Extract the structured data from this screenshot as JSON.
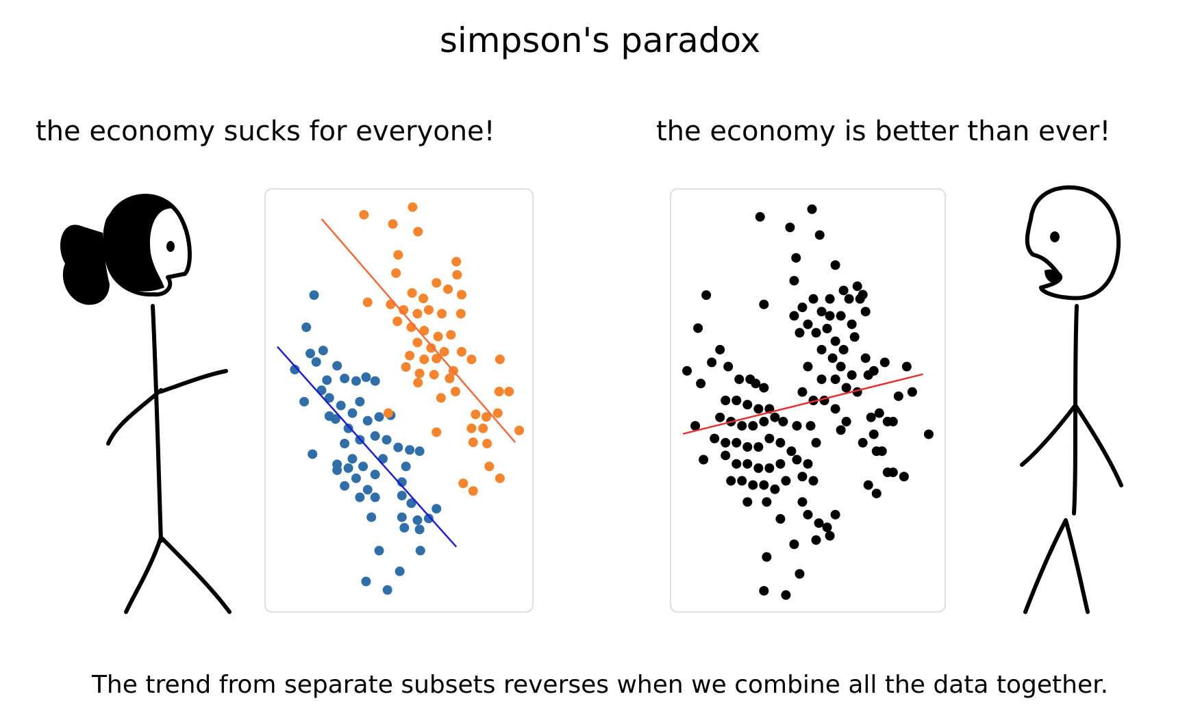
{
  "title": "simpson's paradox",
  "left_caption": "the economy sucks for everyone!",
  "right_caption": "the economy is better than ever!",
  "footer": "The trend from separate subsets reverses when we combine all the data together.",
  "chart_data": [
    {
      "type": "scatter",
      "xlim": [
        0,
        100
      ],
      "ylim": [
        0,
        100
      ],
      "series": [
        {
          "color": "#2f6ea8",
          "x": [
            18.3,
            15.4,
            11.1,
            16.9,
            21.7,
            19.1,
            23.1,
            14.6,
            17.7,
            26.9,
            29.7,
            34,
            37.7,
            41.1,
            24,
            28.3,
            32.6,
            35.4,
            26.3,
            31.1,
            38.3,
            42.6,
            46.9,
            41.1,
            45.4,
            35.4,
            29.7,
            32.6,
            26.9,
            36.6,
            41.1,
            34,
            29.7,
            38.3,
            44,
            49.7,
            54,
            57.7,
            52.6,
            51.1,
            35.4,
            41.1,
            51.1,
            54.6,
            39.7,
            51.1,
            56.9,
            61.1,
            64,
            57.7,
            52,
            42.6,
            58,
            50.3,
            37.7,
            45.7,
            26.9,
            31.1,
            24,
            21.1
          ],
          "values": [
            74.9,
            67.3,
            57.3,
            61.1,
            61.8,
            59.1,
            54.8,
            49.7,
            37.3,
            58.2,
            55.2,
            54.6,
            55.5,
            54.6,
            50.6,
            48.8,
            47,
            49.7,
            45.6,
            43.4,
            45.2,
            46.1,
            46.5,
            41.6,
            40.7,
            40.7,
            39.8,
            36.2,
            34.9,
            34.4,
            32.5,
            31.6,
            29.8,
            28.9,
            36.2,
            38.9,
            38.3,
            38,
            34.4,
            30.7,
            27.1,
            27.1,
            27.5,
            25.7,
            22.4,
            22.4,
            21.7,
            22.1,
            24.4,
            19.5,
            19.9,
            14.5,
            14.5,
            9.6,
            7.2,
            5.2,
            33.5,
            34,
            46.3,
            52.4
          ]
        },
        {
          "color": "#f5842c",
          "x": [
            55.1,
            36.9,
            47.7,
            57.1,
            49.7,
            71.4,
            48.9,
            71.7,
            64,
            68.3,
            73.4,
            54.9,
            59.1,
            38.3,
            46.9,
            51.7,
            56.9,
            61.1,
            66,
            73.1,
            49.4,
            54.6,
            59.4,
            64.6,
            69.4,
            56.9,
            62,
            66.9,
            73.4,
            52.6,
            57.7,
            64,
            70.3,
            77.1,
            87.7,
            57.1,
            65.7,
            71.1,
            91.1,
            87.4,
            78.6,
            82.6,
            86.9,
            77.1,
            81.4,
            64,
            94.9,
            77.7,
            82.9,
            83.7,
            87.7,
            74,
            77.7,
            46,
            54,
            63.1,
            68.9,
            59.4
          ],
          "values": [
            95.7,
            93.9,
            91.7,
            89.9,
            84.4,
            82.8,
            80.1,
            79.7,
            77.8,
            76.3,
            75,
            75.4,
            74.1,
            73.2,
            72.7,
            71.4,
            70.5,
            71.4,
            70.5,
            70.5,
            68.7,
            67.3,
            66.5,
            65.1,
            65.5,
            63.7,
            62.4,
            61.5,
            61.5,
            57.9,
            56.4,
            59.9,
            57,
            59.7,
            59.7,
            54.2,
            50.6,
            52.1,
            52.1,
            52.1,
            46.7,
            46.1,
            47,
            43.4,
            43.4,
            42.5,
            42.9,
            40.1,
            39.8,
            34.4,
            31.6,
            30.4,
            28.6,
            47,
            60.6,
            56.1,
            55.2,
            59.7
          ]
        }
      ],
      "lines": [
        {
          "color": "#1a1ad8",
          "x": [
            4.6,
            71.4
          ],
          "values": [
            62.7,
            15.4
          ]
        },
        {
          "color": "#f26a3a",
          "x": [
            21.1,
            93.4
          ],
          "values": [
            92.9,
            40.1
          ]
        }
      ]
    },
    {
      "type": "scatter",
      "xlim": [
        0,
        100
      ],
      "ylim": [
        0,
        100
      ],
      "series": [
        {
          "color": "#000000",
          "x": [
            32.6,
            43.5,
            51.5,
            54.3,
            45.7,
            45,
            13,
            34,
            10,
            60,
            68,
            63,
            69,
            70,
            71,
            65,
            58,
            48,
            52,
            55,
            58,
            62,
            66,
            50,
            53,
            57,
            60,
            63,
            67,
            71,
            55,
            59,
            62,
            66,
            50,
            55,
            60,
            64,
            68,
            72,
            48,
            52,
            56,
            47,
            45,
            74,
            78,
            86,
            88,
            83,
            73,
            76,
            79,
            81,
            74,
            70,
            75,
            77,
            79,
            81,
            72,
            75,
            85,
            94,
            6,
            11,
            15,
            18,
            21,
            25,
            29,
            31,
            34,
            20,
            24,
            28,
            32,
            36,
            18,
            22,
            26,
            30,
            34,
            38,
            41,
            46,
            16,
            20,
            24,
            28,
            32,
            36,
            40,
            44,
            24,
            28,
            32,
            36,
            40,
            20,
            26,
            30,
            34,
            38,
            42,
            22,
            28,
            35,
            48,
            52,
            50,
            46,
            53,
            51,
            12,
            9,
            48,
            50,
            54,
            57,
            53,
            58,
            60,
            35,
            47,
            34,
            42,
            45,
            40,
            62,
            64,
            60
          ],
          "values": [
            93.4,
            90.9,
            95.2,
            89.1,
            83.7,
            78.3,
            74.9,
            72.7,
            67.1,
            82,
            77,
            76,
            74,
            75,
            71,
            74,
            74,
            72,
            74,
            71,
            70,
            70,
            68,
            68,
            66,
            67,
            64,
            62,
            65,
            60,
            62,
            60,
            58,
            56,
            58,
            55,
            55,
            53,
            52,
            56,
            52,
            50,
            50,
            66,
            70,
            57,
            59,
            58,
            52,
            51,
            46,
            47,
            45,
            45,
            42,
            40,
            38,
            38,
            33,
            33,
            30,
            28,
            32,
            42,
            57,
            54,
            59,
            62,
            58,
            55,
            55,
            54,
            53,
            50,
            50,
            49,
            48,
            48,
            46,
            45,
            44,
            44,
            45,
            46,
            45,
            44,
            41,
            40,
            40,
            39,
            39,
            41,
            40,
            38,
            35,
            35,
            34,
            34,
            35,
            37,
            31,
            30,
            30,
            29,
            31,
            31,
            26,
            26,
            32,
            31,
            35,
            36,
            40,
            44,
            36,
            44,
            26,
            23,
            21,
            20,
            17,
            18,
            23,
            13,
            9,
            5,
            4,
            16,
            22,
            43,
            45,
            48
          ]
        }
      ],
      "lines": [
        {
          "color": "#e53030",
          "x": [
            4.5,
            91.9
          ],
          "values": [
            42.1,
            56.2
          ]
        }
      ]
    }
  ]
}
